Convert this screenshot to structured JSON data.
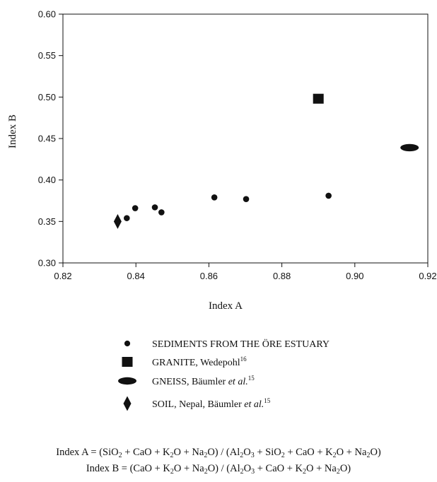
{
  "chart_data": {
    "type": "scatter",
    "xlabel": "Index A",
    "ylabel": "Index B",
    "xlim": [
      0.82,
      0.92
    ],
    "ylim": [
      0.3,
      0.6
    ],
    "x_ticks": [
      "0.82",
      "0.84",
      "0.86",
      "0.88",
      "0.90",
      "0.92"
    ],
    "y_ticks": [
      "0.30",
      "0.35",
      "0.40",
      "0.45",
      "0.50",
      "0.55",
      "0.60"
    ],
    "x_tick_values": [
      0.82,
      0.84,
      0.86,
      0.88,
      0.9,
      0.92
    ],
    "y_tick_values": [
      0.3,
      0.35,
      0.4,
      0.45,
      0.5,
      0.55,
      0.6
    ],
    "grid": false,
    "legend_position": "below",
    "series": [
      {
        "name": "SEDIMENTS FROM THE ÖRE ESTUARY",
        "marker": "circle",
        "color": "#111111",
        "points": [
          {
            "x": 0.8375,
            "y": 0.354
          },
          {
            "x": 0.8398,
            "y": 0.366
          },
          {
            "x": 0.8452,
            "y": 0.367
          },
          {
            "x": 0.847,
            "y": 0.361
          },
          {
            "x": 0.8615,
            "y": 0.379
          },
          {
            "x": 0.8702,
            "y": 0.377
          },
          {
            "x": 0.8928,
            "y": 0.381
          }
        ]
      },
      {
        "name": "GRANITE, Wedepohl",
        "name_sup": "16",
        "marker": "square",
        "color": "#111111",
        "points": [
          {
            "x": 0.89,
            "y": 0.498
          }
        ]
      },
      {
        "name": "GNEISS, Bäumler ",
        "name_italic": "et al.",
        "name_sup": "15",
        "marker": "ellipse",
        "color": "#111111",
        "points": [
          {
            "x": 0.915,
            "y": 0.439
          }
        ]
      },
      {
        "name": "SOIL, Nepal, Bäumler ",
        "name_italic": "et al.",
        "name_sup": "15",
        "marker": "diamond",
        "color": "#111111",
        "points": [
          {
            "x": 0.835,
            "y": 0.35
          }
        ]
      }
    ]
  },
  "formulas": {
    "index_a": {
      "parts": [
        {
          "t": "Index A = (SiO"
        },
        {
          "s": "2"
        },
        {
          "t": " + CaO + K"
        },
        {
          "s": "2"
        },
        {
          "t": "O + Na"
        },
        {
          "s": "2"
        },
        {
          "t": "O) / (Al"
        },
        {
          "s": "2"
        },
        {
          "t": "O"
        },
        {
          "s": "3"
        },
        {
          "t": " + SiO"
        },
        {
          "s": "2"
        },
        {
          "t": " + CaO + K"
        },
        {
          "s": "2"
        },
        {
          "t": "O + Na"
        },
        {
          "s": "2"
        },
        {
          "t": "O)"
        }
      ]
    },
    "index_b": {
      "parts": [
        {
          "t": "Index B = (CaO + K"
        },
        {
          "s": "2"
        },
        {
          "t": "O + Na"
        },
        {
          "s": "2"
        },
        {
          "t": "O) / (Al"
        },
        {
          "s": "2"
        },
        {
          "t": "O"
        },
        {
          "s": "3"
        },
        {
          "t": " + CaO + K"
        },
        {
          "s": "2"
        },
        {
          "t": "O + Na"
        },
        {
          "s": "2"
        },
        {
          "t": "O)"
        }
      ]
    }
  }
}
